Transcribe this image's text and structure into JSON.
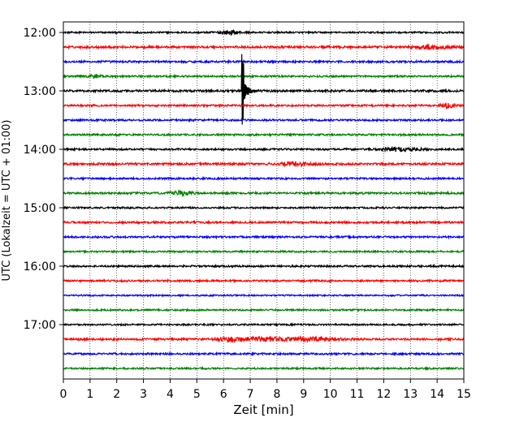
{
  "chart_data": {
    "type": "line",
    "title": "",
    "xlabel": "Zeit  [min]",
    "ylabel": "UTC (Lokalzeit = UTC + 01:00)",
    "xlim": [
      0,
      15
    ],
    "xticks": [
      0,
      1,
      2,
      3,
      4,
      5,
      6,
      7,
      8,
      9,
      10,
      11,
      12,
      13,
      14,
      15
    ],
    "grid": "vertical dotted",
    "trace_interval_min": 15,
    "trace_colors_cycle": [
      "#000000",
      "#ff0000",
      "#0000ff",
      "#008000"
    ],
    "yticks": [
      {
        "label": "12:00",
        "trace": 0
      },
      {
        "label": "13:00",
        "trace": 4
      },
      {
        "label": "14:00",
        "trace": 8
      },
      {
        "label": "15:00",
        "trace": 12
      },
      {
        "label": "16:00",
        "trace": 16
      },
      {
        "label": "17:00",
        "trace": 20
      }
    ],
    "traces": [
      {
        "start": "12:00",
        "color": "#000000",
        "noise": 1.0,
        "bursts": [
          {
            "t": 6.2,
            "amp": 2.0,
            "w": 0.3
          }
        ]
      },
      {
        "start": "12:15",
        "color": "#ff0000",
        "noise": 1.3,
        "bursts": [
          {
            "t": 13.8,
            "amp": 2.2,
            "w": 0.4
          }
        ]
      },
      {
        "start": "12:30",
        "color": "#0000ff",
        "noise": 1.2,
        "bursts": []
      },
      {
        "start": "12:45",
        "color": "#008000",
        "noise": 1.1,
        "bursts": [
          {
            "t": 1.3,
            "amp": 2.0,
            "w": 0.2
          }
        ]
      },
      {
        "start": "13:00",
        "color": "#000000",
        "noise": 1.3,
        "bursts": [
          {
            "t": 6.7,
            "amp": 47,
            "w": 0.18
          }
        ]
      },
      {
        "start": "13:15",
        "color": "#ff0000",
        "noise": 1.1,
        "bursts": [
          {
            "t": 14.4,
            "amp": 2.2,
            "w": 0.2
          }
        ]
      },
      {
        "start": "13:30",
        "color": "#0000ff",
        "noise": 1.1,
        "bursts": []
      },
      {
        "start": "13:45",
        "color": "#008000",
        "noise": 1.1,
        "bursts": []
      },
      {
        "start": "14:00",
        "color": "#000000",
        "noise": 1.1,
        "bursts": [
          {
            "t": 12.6,
            "amp": 2.0,
            "w": 0.5
          }
        ]
      },
      {
        "start": "14:15",
        "color": "#ff0000",
        "noise": 1.3,
        "bursts": [
          {
            "t": 8.7,
            "amp": 2.0,
            "w": 0.4
          }
        ]
      },
      {
        "start": "14:30",
        "color": "#0000ff",
        "noise": 1.1,
        "bursts": []
      },
      {
        "start": "14:45",
        "color": "#008000",
        "noise": 1.2,
        "bursts": [
          {
            "t": 4.4,
            "amp": 2.2,
            "w": 0.3
          }
        ]
      },
      {
        "start": "15:00",
        "color": "#000000",
        "noise": 1.0,
        "bursts": []
      },
      {
        "start": "15:15",
        "color": "#ff0000",
        "noise": 1.2,
        "bursts": []
      },
      {
        "start": "15:30",
        "color": "#0000ff",
        "noise": 1.1,
        "bursts": []
      },
      {
        "start": "15:45",
        "color": "#008000",
        "noise": 1.0,
        "bursts": []
      },
      {
        "start": "16:00",
        "color": "#000000",
        "noise": 1.1,
        "bursts": []
      },
      {
        "start": "16:15",
        "color": "#ff0000",
        "noise": 1.1,
        "bursts": []
      },
      {
        "start": "16:30",
        "color": "#0000ff",
        "noise": 0.9,
        "bursts": []
      },
      {
        "start": "16:45",
        "color": "#008000",
        "noise": 1.0,
        "bursts": []
      },
      {
        "start": "17:00",
        "color": "#000000",
        "noise": 1.0,
        "bursts": []
      },
      {
        "start": "17:15",
        "color": "#ff0000",
        "noise": 1.2,
        "bursts": [
          {
            "t": 6.2,
            "amp": 2.5,
            "w": 0.25
          },
          {
            "t": 7.4,
            "amp": 2.2,
            "w": 0.8
          },
          {
            "t": 9.5,
            "amp": 2.0,
            "w": 0.6
          }
        ]
      },
      {
        "start": "17:30",
        "color": "#0000ff",
        "noise": 1.1,
        "bursts": []
      },
      {
        "start": "17:45",
        "color": "#008000",
        "noise": 1.0,
        "bursts": []
      }
    ]
  }
}
